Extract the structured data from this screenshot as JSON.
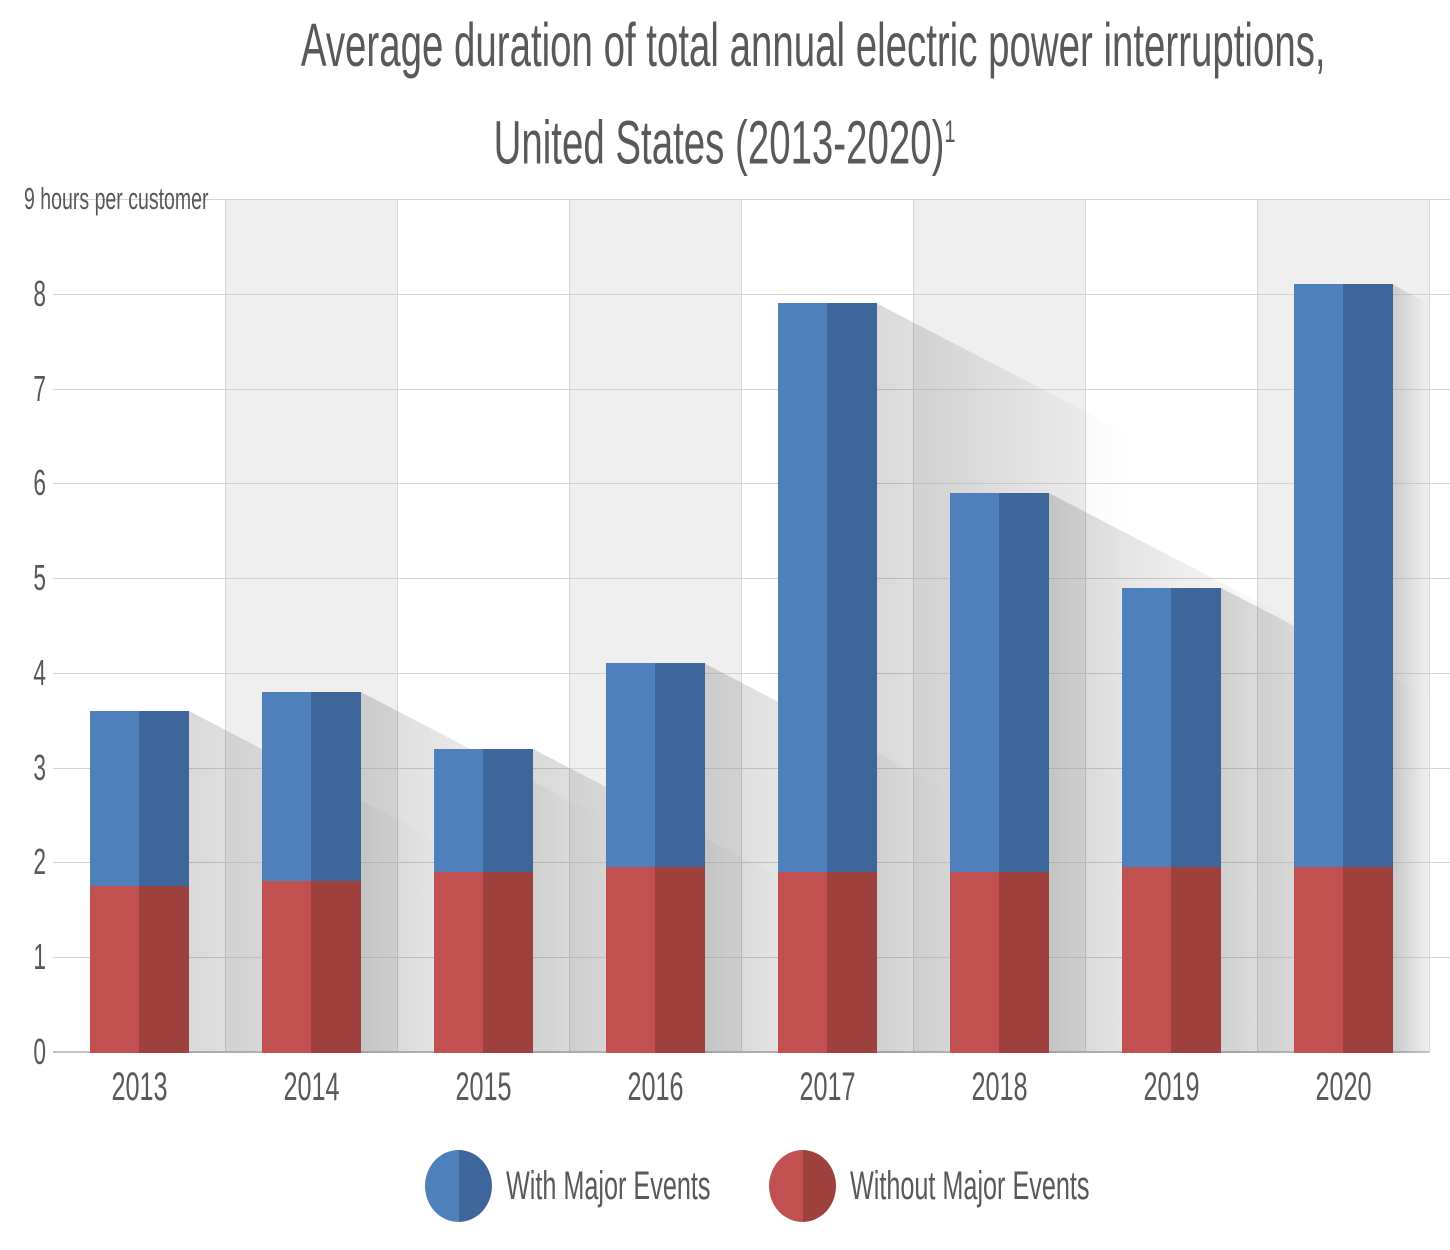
{
  "title": {
    "line1": "Average duration of total annual electric power interruptions,",
    "line2": "United States (2013-2020)",
    "footnote_marker": "1"
  },
  "y_axis": {
    "top_label": "9 hours per customer",
    "ticks": [
      "8",
      "7",
      "6",
      "5",
      "4",
      "3",
      "2",
      "1",
      "0"
    ]
  },
  "legend": {
    "items": [
      {
        "label": "With Major Events",
        "color_light": "#4e80bc",
        "color_dark": "#3f669b"
      },
      {
        "label": "Without Major Events",
        "color_light": "#c05150",
        "color_dark": "#9d403e"
      }
    ]
  },
  "colors": {
    "with_major_events_light": "#4e80bc",
    "with_major_events_dark": "#3f669b",
    "without_major_events_light": "#c05150",
    "without_major_events_dark": "#9d403e",
    "text": "#58595b",
    "band_gray": "#efefef",
    "gridline": "#d4d4d4",
    "baseline": "#c2c2c2",
    "shadow": "rgba(80,80,80,0.22)"
  },
  "chart_data": {
    "type": "bar",
    "stacked": true,
    "title": "Average duration of total annual electric power interruptions, United States (2013-2020)",
    "categories": [
      "2013",
      "2014",
      "2015",
      "2016",
      "2017",
      "2018",
      "2019",
      "2020"
    ],
    "series": [
      {
        "name": "With Major Events",
        "role": "total-bar-height",
        "values": [
          3.6,
          3.8,
          3.2,
          4.1,
          7.9,
          5.9,
          4.9,
          8.1
        ]
      },
      {
        "name": "Without Major Events",
        "role": "bottom-segment",
        "values": [
          1.75,
          1.8,
          1.9,
          1.95,
          1.9,
          1.9,
          1.95,
          1.95
        ]
      }
    ],
    "ylabel": "9 hours per customer",
    "ylim": [
      0,
      9
    ],
    "grid": true,
    "background_bands": "alternating vertical gray/white columns",
    "legend_position": "bottom"
  }
}
